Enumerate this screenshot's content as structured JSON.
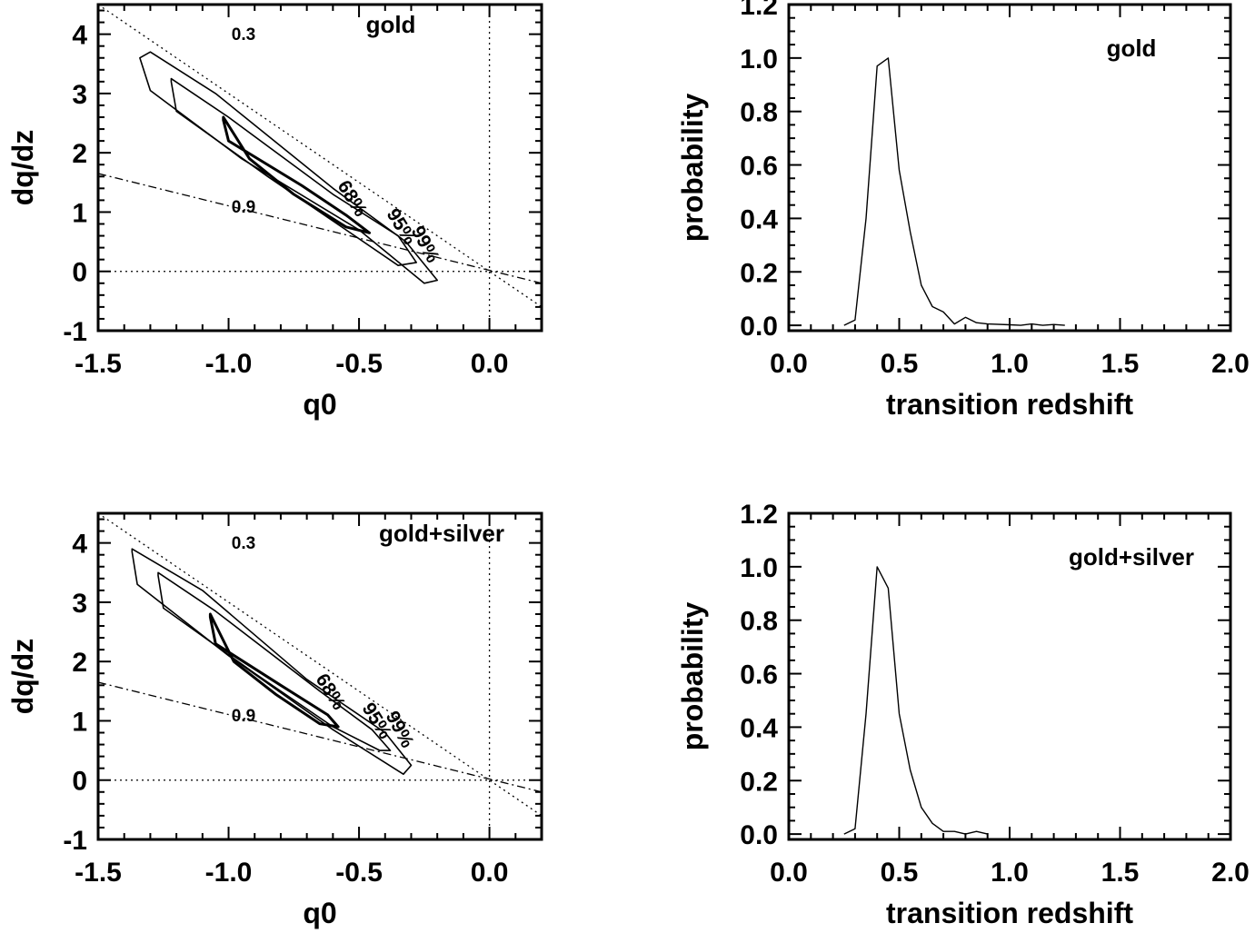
{
  "chart_data": [
    {
      "type": "contour",
      "panel": "top-left",
      "title": "gold",
      "xlabel": "q0",
      "ylabel": "dq/dz",
      "xlim": [
        -1.5,
        0.2
      ],
      "ylim": [
        -1.0,
        4.5
      ],
      "xticks": [
        -1.5,
        -1.0,
        -0.5,
        0.0
      ],
      "xtick_labels": [
        "-1.5",
        "-1.0",
        "-0.5",
        "0.0"
      ],
      "yticks": [
        -1,
        0,
        1,
        2,
        3,
        4
      ],
      "ytick_labels": [
        "-1",
        "0",
        "1",
        "2",
        "3",
        "4"
      ],
      "reference_lines": [
        {
          "name": "q0-zero",
          "type": "vertical",
          "x": 0.0,
          "style": "dotted"
        },
        {
          "name": "dqdz-zero",
          "type": "horizontal",
          "y": 0.0,
          "style": "dotted"
        },
        {
          "label": "0.3",
          "style": "dotted",
          "points": [
            [
              -1.5,
              4.5
            ],
            [
              0.2,
              -0.6
            ]
          ]
        },
        {
          "label": "0.9",
          "style": "dashed",
          "points": [
            [
              -1.5,
              1.65
            ],
            [
              0.2,
              -0.2
            ]
          ]
        }
      ],
      "contours": [
        {
          "label": "68%",
          "points": [
            [
              -1.02,
              2.55
            ],
            [
              -1.0,
              2.2
            ],
            [
              -0.72,
              1.45
            ],
            [
              -0.55,
              0.95
            ],
            [
              -0.46,
              0.65
            ],
            [
              -0.55,
              0.75
            ],
            [
              -0.75,
              1.3
            ],
            [
              -0.92,
              1.9
            ],
            [
              -1.02,
              2.6
            ]
          ]
        },
        {
          "label": "95%",
          "points": [
            [
              -1.22,
              3.2
            ],
            [
              -1.2,
              2.7
            ],
            [
              -0.85,
              1.6
            ],
            [
              -0.55,
              0.7
            ],
            [
              -0.35,
              0.1
            ],
            [
              -0.28,
              0.15
            ],
            [
              -0.35,
              0.6
            ],
            [
              -0.6,
              1.3
            ],
            [
              -1.0,
              2.6
            ],
            [
              -1.22,
              3.25
            ]
          ]
        },
        {
          "label": "99%",
          "points": [
            [
              -1.34,
              3.6
            ],
            [
              -1.3,
              3.05
            ],
            [
              -0.95,
              1.9
            ],
            [
              -0.5,
              0.7
            ],
            [
              -0.25,
              -0.2
            ],
            [
              -0.2,
              -0.15
            ],
            [
              -0.32,
              0.5
            ],
            [
              -0.6,
              1.4
            ],
            [
              -1.05,
              3.0
            ],
            [
              -1.3,
              3.7
            ]
          ]
        }
      ],
      "line_labels": [
        "0.3",
        "0.9"
      ],
      "contour_labels": [
        "68%",
        "95%",
        "99%"
      ]
    },
    {
      "type": "line",
      "panel": "top-right",
      "title": "gold",
      "xlabel": "transition redshift",
      "ylabel": "probability",
      "xlim": [
        0.0,
        2.0
      ],
      "ylim": [
        -0.02,
        1.2
      ],
      "xticks": [
        0.0,
        0.5,
        1.0,
        1.5,
        2.0
      ],
      "xtick_labels": [
        "0.0",
        "0.5",
        "1.0",
        "1.5",
        "2.0"
      ],
      "yticks": [
        0.0,
        0.2,
        0.4,
        0.6,
        0.8,
        1.0,
        1.2
      ],
      "ytick_labels": [
        "0.0",
        "0.2",
        "0.4",
        "0.6",
        "0.8",
        "1.0",
        "1.2"
      ],
      "x": [
        0.25,
        0.3,
        0.35,
        0.4,
        0.45,
        0.5,
        0.55,
        0.6,
        0.65,
        0.7,
        0.75,
        0.8,
        0.85,
        0.9,
        1.0,
        1.05,
        1.1,
        1.15,
        1.2,
        1.25
      ],
      "y": [
        0.0,
        0.02,
        0.4,
        0.97,
        1.0,
        0.58,
        0.35,
        0.15,
        0.07,
        0.05,
        0.005,
        0.03,
        0.01,
        0.005,
        0.002,
        0.0,
        0.005,
        0.0,
        0.003,
        0.0
      ]
    },
    {
      "type": "contour",
      "panel": "bottom-left",
      "title": "gold+silver",
      "xlabel": "q0",
      "ylabel": "dq/dz",
      "xlim": [
        -1.5,
        0.2
      ],
      "ylim": [
        -1.0,
        4.5
      ],
      "xticks": [
        -1.5,
        -1.0,
        -0.5,
        0.0
      ],
      "xtick_labels": [
        "-1.5",
        "-1.0",
        "-0.5",
        "0.0"
      ],
      "yticks": [
        -1,
        0,
        1,
        2,
        3,
        4
      ],
      "ytick_labels": [
        "-1",
        "0",
        "1",
        "2",
        "3",
        "4"
      ],
      "reference_lines": [
        {
          "name": "q0-zero",
          "type": "vertical",
          "x": 0.0,
          "style": "dotted"
        },
        {
          "name": "dqdz-zero",
          "type": "horizontal",
          "y": 0.0,
          "style": "dotted"
        },
        {
          "label": "0.3",
          "style": "dotted",
          "points": [
            [
              -1.5,
              4.5
            ],
            [
              0.2,
              -0.6
            ]
          ]
        },
        {
          "label": "0.9",
          "style": "dashed",
          "points": [
            [
              -1.5,
              1.65
            ],
            [
              0.2,
              -0.2
            ]
          ]
        }
      ],
      "contours": [
        {
          "label": "68%",
          "points": [
            [
              -1.07,
              2.75
            ],
            [
              -1.05,
              2.3
            ],
            [
              -0.8,
              1.6
            ],
            [
              -0.62,
              1.1
            ],
            [
              -0.58,
              0.9
            ],
            [
              -0.65,
              0.95
            ],
            [
              -0.82,
              1.45
            ],
            [
              -0.98,
              2.0
            ],
            [
              -1.07,
              2.8
            ]
          ]
        },
        {
          "label": "95%",
          "points": [
            [
              -1.27,
              3.45
            ],
            [
              -1.25,
              2.9
            ],
            [
              -0.9,
              1.8
            ],
            [
              -0.6,
              0.9
            ],
            [
              -0.42,
              0.5
            ],
            [
              -0.38,
              0.5
            ],
            [
              -0.45,
              0.85
            ],
            [
              -0.65,
              1.5
            ],
            [
              -1.05,
              2.85
            ],
            [
              -1.27,
              3.5
            ]
          ]
        },
        {
          "label": "99%",
          "points": [
            [
              -1.37,
              3.85
            ],
            [
              -1.35,
              3.3
            ],
            [
              -1.0,
              2.1
            ],
            [
              -0.6,
              0.85
            ],
            [
              -0.33,
              0.1
            ],
            [
              -0.3,
              0.25
            ],
            [
              -0.4,
              0.8
            ],
            [
              -0.7,
              1.7
            ],
            [
              -1.1,
              3.2
            ],
            [
              -1.37,
              3.9
            ]
          ]
        }
      ],
      "line_labels": [
        "0.3",
        "0.9"
      ],
      "contour_labels": [
        "68%",
        "95%",
        "99%"
      ]
    },
    {
      "type": "line",
      "panel": "bottom-right",
      "title": "gold+silver",
      "xlabel": "transition redshift",
      "ylabel": "probability",
      "xlim": [
        0.0,
        2.0
      ],
      "ylim": [
        -0.02,
        1.2
      ],
      "xticks": [
        0.0,
        0.5,
        1.0,
        1.5,
        2.0
      ],
      "xtick_labels": [
        "0.0",
        "0.5",
        "1.0",
        "1.5",
        "2.0"
      ],
      "yticks": [
        0.0,
        0.2,
        0.4,
        0.6,
        0.8,
        1.0,
        1.2
      ],
      "ytick_labels": [
        "0.0",
        "0.2",
        "0.4",
        "0.6",
        "0.8",
        "1.0",
        "1.2"
      ],
      "x": [
        0.25,
        0.3,
        0.35,
        0.4,
        0.45,
        0.5,
        0.55,
        0.6,
        0.65,
        0.7,
        0.75,
        0.8,
        0.85,
        0.9
      ],
      "y": [
        0.0,
        0.02,
        0.45,
        1.0,
        0.92,
        0.45,
        0.24,
        0.1,
        0.04,
        0.01,
        0.01,
        0.0,
        0.01,
        0.0
      ]
    }
  ]
}
